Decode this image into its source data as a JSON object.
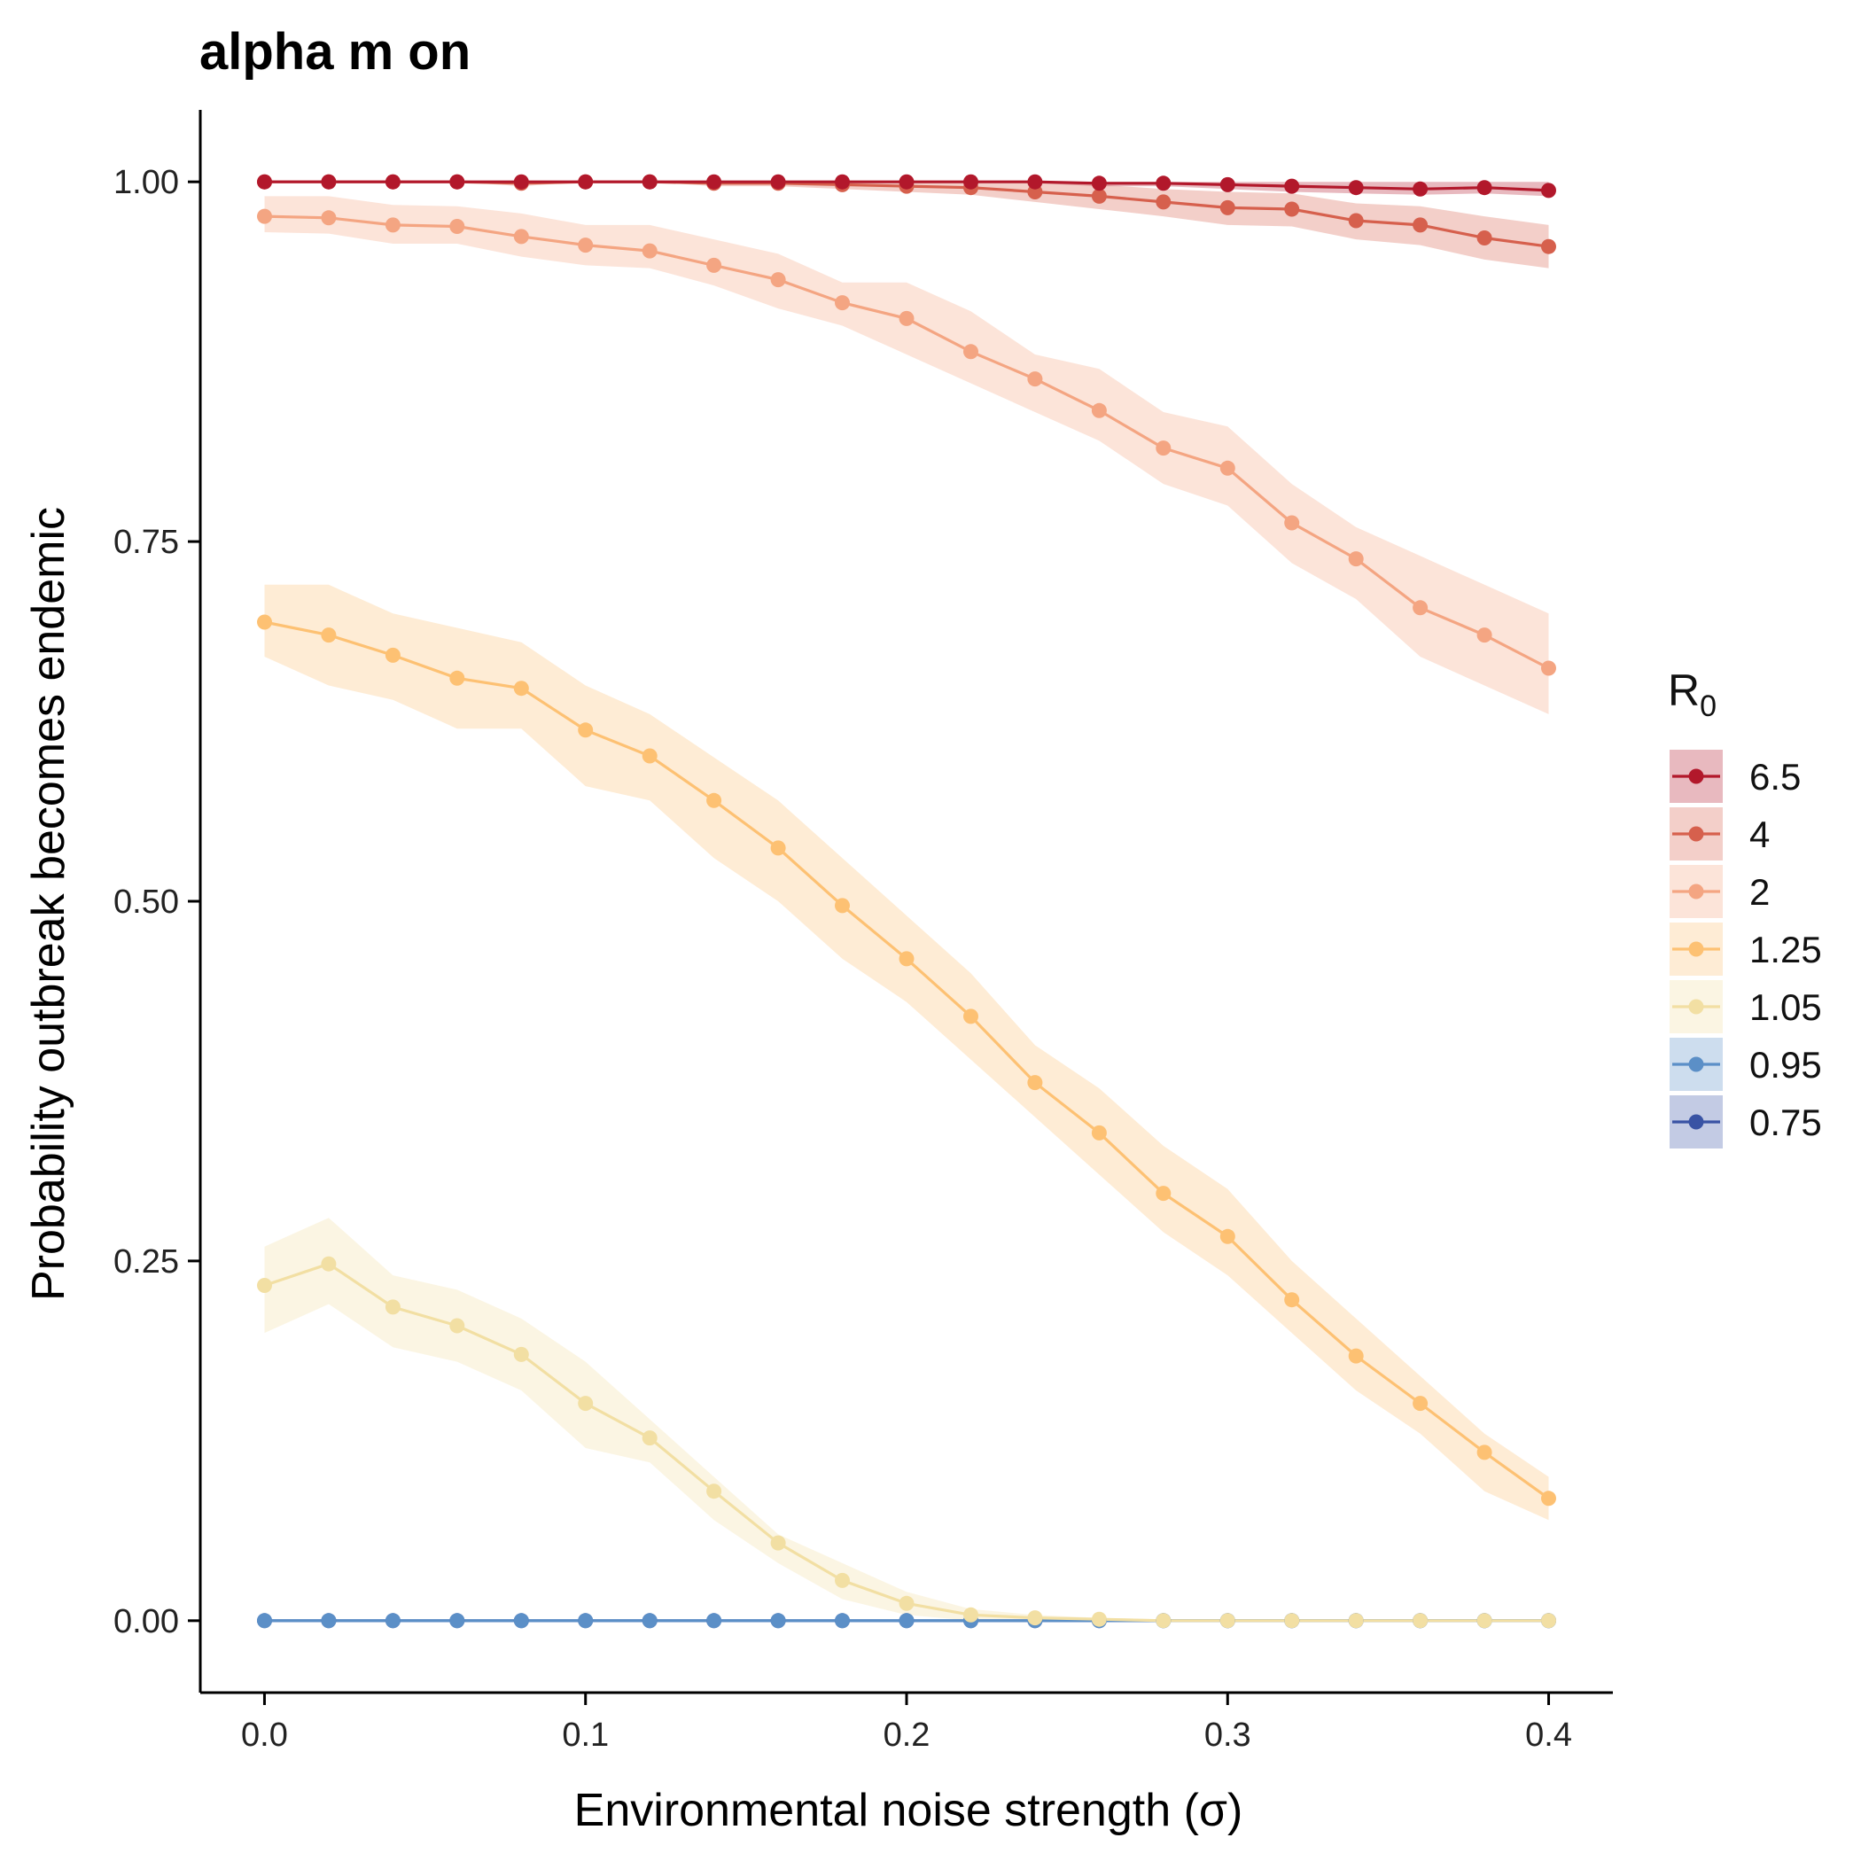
{
  "chart_data": {
    "type": "line",
    "title": "alpha m on",
    "xlabel": "Environmental noise strength (σ)",
    "ylabel": "Probability outbreak becomes endemic",
    "xlim": [
      -0.02,
      0.42
    ],
    "ylim": [
      -0.05,
      1.05
    ],
    "x_ticks": [
      "0.0",
      "0.1",
      "0.2",
      "0.3",
      "0.4"
    ],
    "y_ticks": [
      "0.00",
      "0.25",
      "0.50",
      "0.75",
      "1.00"
    ],
    "grid": false,
    "legend": {
      "title": "R",
      "title_subscript": "0",
      "position": "right"
    },
    "x": [
      0,
      0.02,
      0.04,
      0.06,
      0.08,
      0.1,
      0.12,
      0.14,
      0.16,
      0.18,
      0.2,
      0.22,
      0.24,
      0.26,
      0.28,
      0.3,
      0.32,
      0.34,
      0.36,
      0.38,
      0.4
    ],
    "series": [
      {
        "name": "6.5",
        "color": "#b2182b",
        "values": [
          1.0,
          1.0,
          1.0,
          1.0,
          1.0,
          1.0,
          1.0,
          1.0,
          1.0,
          1.0,
          1.0,
          1.0,
          1.0,
          0.999,
          0.999,
          0.998,
          0.997,
          0.996,
          0.995,
          0.996,
          0.994
        ],
        "lower": [
          1.0,
          1.0,
          1.0,
          1.0,
          1.0,
          1.0,
          1.0,
          1.0,
          1.0,
          1.0,
          1.0,
          1.0,
          0.999,
          0.997,
          0.997,
          0.995,
          0.993,
          0.992,
          0.991,
          0.992,
          0.99
        ],
        "upper": [
          1.0,
          1.0,
          1.0,
          1.0,
          1.0,
          1.0,
          1.0,
          1.0,
          1.0,
          1.0,
          1.0,
          1.0,
          1.0,
          1.0,
          1.0,
          1.0,
          1.0,
          1.0,
          1.0,
          1.0,
          1.0
        ]
      },
      {
        "name": "4",
        "color": "#d6604d",
        "values": [
          1.0,
          1.0,
          1.0,
          1.0,
          0.999,
          1.0,
          1.0,
          0.999,
          0.999,
          0.998,
          0.997,
          0.996,
          0.993,
          0.99,
          0.986,
          0.982,
          0.981,
          0.973,
          0.97,
          0.961,
          0.955
        ],
        "lower": [
          1.0,
          1.0,
          1.0,
          1.0,
          0.997,
          1.0,
          1.0,
          0.997,
          0.997,
          0.995,
          0.993,
          0.991,
          0.986,
          0.981,
          0.976,
          0.97,
          0.969,
          0.96,
          0.956,
          0.946,
          0.94
        ],
        "upper": [
          1.0,
          1.0,
          1.0,
          1.0,
          1.0,
          1.0,
          1.0,
          1.0,
          1.0,
          1.0,
          1.0,
          1.0,
          1.0,
          0.998,
          0.995,
          0.993,
          0.992,
          0.985,
          0.983,
          0.976,
          0.97
        ]
      },
      {
        "name": "2",
        "color": "#f4a582",
        "values": [
          0.976,
          0.975,
          0.97,
          0.969,
          0.962,
          0.956,
          0.952,
          0.942,
          0.932,
          0.916,
          0.905,
          0.882,
          0.863,
          0.841,
          0.815,
          0.801,
          0.763,
          0.738,
          0.704,
          0.685,
          0.662
        ],
        "lower": [
          0.965,
          0.964,
          0.957,
          0.957,
          0.948,
          0.942,
          0.94,
          0.928,
          0.912,
          0.9,
          0.88,
          0.86,
          0.84,
          0.82,
          0.79,
          0.775,
          0.735,
          0.71,
          0.67,
          0.65,
          0.63
        ],
        "upper": [
          0.99,
          0.99,
          0.984,
          0.983,
          0.978,
          0.97,
          0.97,
          0.96,
          0.95,
          0.93,
          0.93,
          0.91,
          0.88,
          0.87,
          0.84,
          0.83,
          0.79,
          0.76,
          0.74,
          0.72,
          0.7
        ]
      },
      {
        "name": "1.25",
        "color": "#fdc173",
        "values": [
          0.694,
          0.685,
          0.671,
          0.655,
          0.648,
          0.619,
          0.601,
          0.57,
          0.537,
          0.497,
          0.46,
          0.42,
          0.374,
          0.339,
          0.297,
          0.267,
          0.223,
          0.184,
          0.151,
          0.117,
          0.085
        ],
        "lower": [
          0.67,
          0.65,
          0.64,
          0.62,
          0.62,
          0.58,
          0.57,
          0.53,
          0.5,
          0.46,
          0.43,
          0.39,
          0.35,
          0.31,
          0.27,
          0.24,
          0.2,
          0.16,
          0.13,
          0.09,
          0.07
        ],
        "upper": [
          0.72,
          0.72,
          0.7,
          0.69,
          0.68,
          0.65,
          0.63,
          0.6,
          0.57,
          0.53,
          0.49,
          0.45,
          0.4,
          0.37,
          0.33,
          0.3,
          0.25,
          0.21,
          0.17,
          0.13,
          0.1
        ]
      },
      {
        "name": "1.05",
        "color": "#f2dfa3",
        "values": [
          0.233,
          0.248,
          0.218,
          0.205,
          0.185,
          0.151,
          0.127,
          0.09,
          0.054,
          0.028,
          0.012,
          0.004,
          0.002,
          0.001,
          0.0,
          0.0,
          0.0,
          0.0,
          0.0,
          0.0,
          0.0
        ],
        "lower": [
          0.2,
          0.22,
          0.19,
          0.18,
          0.16,
          0.12,
          0.11,
          0.07,
          0.04,
          0.015,
          0.004,
          0.0,
          0.0,
          0.0,
          0.0,
          0.0,
          0.0,
          0.0,
          0.0,
          0.0,
          0.0
        ],
        "upper": [
          0.26,
          0.28,
          0.24,
          0.23,
          0.21,
          0.18,
          0.14,
          0.1,
          0.06,
          0.04,
          0.02,
          0.008,
          0.004,
          0.002,
          0.001,
          0.001,
          0.001,
          0.001,
          0.001,
          0.001,
          0.001
        ]
      },
      {
        "name": "0.95",
        "color": "#5b8fc7",
        "values": [
          0.0,
          0.0,
          0.0,
          0.0,
          0.0,
          0.0,
          0.0,
          0.0,
          0.0,
          0.0,
          0.0,
          0.0,
          0.0,
          0.0,
          0.0,
          0.0,
          0.0,
          0.0,
          0.0,
          0.0,
          0.0
        ],
        "lower": [
          0.0,
          0.0,
          0.0,
          0.0,
          0.0,
          0.0,
          0.0,
          0.0,
          0.0,
          0.0,
          0.0,
          0.0,
          0.0,
          0.0,
          0.0,
          0.0,
          0.0,
          0.0,
          0.0,
          0.0,
          0.0
        ],
        "upper": [
          0.0,
          0.0,
          0.0,
          0.0,
          0.0,
          0.0,
          0.0,
          0.0,
          0.0,
          0.0,
          0.0,
          0.0,
          0.0,
          0.0,
          0.0,
          0.0,
          0.0,
          0.0,
          0.0,
          0.0,
          0.0
        ]
      },
      {
        "name": "0.75",
        "color": "#3953a4",
        "values": [
          0.0,
          0.0,
          0.0,
          0.0,
          0.0,
          0.0,
          0.0,
          0.0,
          0.0,
          0.0,
          0.0,
          0.0,
          0.0,
          0.0,
          0.0,
          0.0,
          0.0,
          0.0,
          0.0,
          0.0,
          0.0
        ],
        "lower": [
          0.0,
          0.0,
          0.0,
          0.0,
          0.0,
          0.0,
          0.0,
          0.0,
          0.0,
          0.0,
          0.0,
          0.0,
          0.0,
          0.0,
          0.0,
          0.0,
          0.0,
          0.0,
          0.0,
          0.0,
          0.0
        ],
        "upper": [
          0.0,
          0.0,
          0.0,
          0.0,
          0.0,
          0.0,
          0.0,
          0.0,
          0.0,
          0.0,
          0.0,
          0.0,
          0.0,
          0.0,
          0.0,
          0.0,
          0.0,
          0.0,
          0.0,
          0.0,
          0.0
        ]
      }
    ]
  }
}
